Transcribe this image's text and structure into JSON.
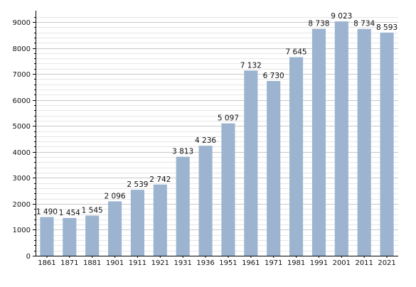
{
  "chart_data": {
    "type": "bar",
    "title": "",
    "xlabel": "",
    "ylabel": "",
    "categories": [
      "1861",
      "1871",
      "1881",
      "1901",
      "1911",
      "1921",
      "1931",
      "1936",
      "1951",
      "1961",
      "1971",
      "1981",
      "1991",
      "2001",
      "2011",
      "2021"
    ],
    "values": [
      1490,
      1454,
      1545,
      2096,
      2539,
      2742,
      3813,
      4236,
      5097,
      7132,
      6730,
      7645,
      8738,
      9023,
      8734,
      8593
    ],
    "data_labels": [
      "1 490",
      "1 454",
      "1 545",
      "2 096",
      "2 539",
      "2 742",
      "3 813",
      "4 236",
      "5 097",
      "7 132",
      "6 730",
      "7 645",
      "8 738",
      "9 023",
      "8 734",
      "8 593"
    ],
    "y_ticks": [
      0,
      1000,
      2000,
      3000,
      4000,
      5000,
      6000,
      7000,
      8000,
      9000
    ],
    "ylim": [
      0,
      9300
    ],
    "grid": true,
    "minor_grid_step": 200,
    "bar_color": "#9cb4d0",
    "grid_color": "#c8c8c8"
  }
}
